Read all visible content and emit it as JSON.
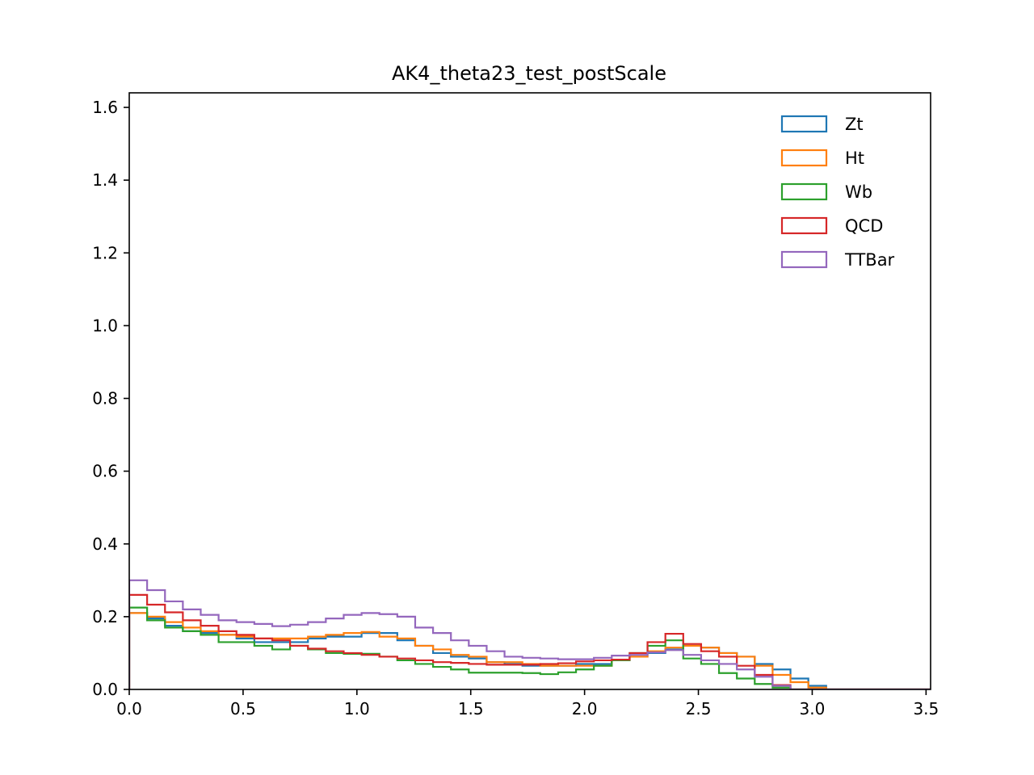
{
  "chart_data": {
    "type": "histogram-step",
    "title": "AK4_theta23_test_postScale",
    "xlabel": "",
    "ylabel": "",
    "xlim": [
      0.0,
      3.52
    ],
    "ylim": [
      0.0,
      1.64
    ],
    "xticks": [
      "0.0",
      "0.5",
      "1.0",
      "1.5",
      "2.0",
      "2.5",
      "3.0",
      "3.5"
    ],
    "xtick_values": [
      0.0,
      0.5,
      1.0,
      1.5,
      2.0,
      2.5,
      3.0,
      3.5
    ],
    "yticks": [
      "0.0",
      "0.2",
      "0.4",
      "0.6",
      "0.8",
      "1.0",
      "1.2",
      "1.4",
      "1.6"
    ],
    "ytick_values": [
      0.0,
      0.2,
      0.4,
      0.6,
      0.8,
      1.0,
      1.2,
      1.4,
      1.6
    ],
    "grid": false,
    "legend_position": "top-right",
    "bin_start": 0.0,
    "bin_width": 0.0785,
    "series": [
      {
        "name": "Zt",
        "color": "#1f77b4",
        "values": [
          0.21,
          0.195,
          0.175,
          0.16,
          0.155,
          0.15,
          0.14,
          0.13,
          0.13,
          0.13,
          0.14,
          0.145,
          0.145,
          0.155,
          0.155,
          0.135,
          0.12,
          0.1,
          0.09,
          0.085,
          0.075,
          0.07,
          0.065,
          0.065,
          0.065,
          0.07,
          0.07,
          0.08,
          0.09,
          0.1,
          0.11,
          0.12,
          0.115,
          0.1,
          0.09,
          0.07,
          0.055,
          0.03,
          0.01,
          0.0,
          0.0,
          0.0,
          0.0,
          0.0,
          0.0
        ]
      },
      {
        "name": "Ht",
        "color": "#ff7f0e",
        "values": [
          0.21,
          0.2,
          0.185,
          0.17,
          0.16,
          0.15,
          0.145,
          0.14,
          0.14,
          0.14,
          0.145,
          0.15,
          0.155,
          0.158,
          0.145,
          0.14,
          0.12,
          0.11,
          0.095,
          0.09,
          0.075,
          0.075,
          0.07,
          0.065,
          0.065,
          0.065,
          0.065,
          0.08,
          0.09,
          0.105,
          0.115,
          0.12,
          0.115,
          0.1,
          0.09,
          0.065,
          0.04,
          0.02,
          0.005,
          0.0,
          0.0,
          0.0,
          0.0,
          0.0,
          0.0
        ]
      },
      {
        "name": "Wb",
        "color": "#2ca02c",
        "values": [
          0.225,
          0.19,
          0.17,
          0.16,
          0.15,
          0.13,
          0.13,
          0.12,
          0.11,
          0.12,
          0.11,
          0.1,
          0.098,
          0.098,
          0.09,
          0.08,
          0.07,
          0.062,
          0.055,
          0.046,
          0.046,
          0.046,
          0.045,
          0.042,
          0.047,
          0.055,
          0.065,
          0.08,
          0.1,
          0.12,
          0.135,
          0.085,
          0.07,
          0.045,
          0.03,
          0.015,
          0.005,
          0.0,
          0.0,
          0.0,
          0.0,
          0.0,
          0.0,
          0.0,
          0.0
        ]
      },
      {
        "name": "QCD",
        "color": "#d62728",
        "values": [
          0.26,
          0.233,
          0.212,
          0.19,
          0.175,
          0.16,
          0.15,
          0.14,
          0.135,
          0.12,
          0.112,
          0.105,
          0.1,
          0.095,
          0.09,
          0.085,
          0.08,
          0.075,
          0.073,
          0.07,
          0.068,
          0.068,
          0.068,
          0.07,
          0.072,
          0.077,
          0.08,
          0.082,
          0.1,
          0.13,
          0.153,
          0.125,
          0.105,
          0.09,
          0.065,
          0.04,
          0.012,
          0.0,
          0.0,
          0.0,
          0.0,
          0.0,
          0.0,
          0.0,
          0.0
        ]
      },
      {
        "name": "TTBar",
        "color": "#9467bd",
        "values": [
          0.3,
          0.273,
          0.242,
          0.22,
          0.205,
          0.19,
          0.185,
          0.18,
          0.174,
          0.178,
          0.185,
          0.195,
          0.205,
          0.21,
          0.207,
          0.2,
          0.17,
          0.155,
          0.135,
          0.12,
          0.105,
          0.09,
          0.087,
          0.085,
          0.083,
          0.083,
          0.087,
          0.093,
          0.095,
          0.102,
          0.108,
          0.095,
          0.08,
          0.07,
          0.055,
          0.035,
          0.01,
          0.0,
          0.0,
          0.0,
          0.0,
          0.0,
          0.0,
          0.0,
          0.0
        ]
      }
    ]
  }
}
